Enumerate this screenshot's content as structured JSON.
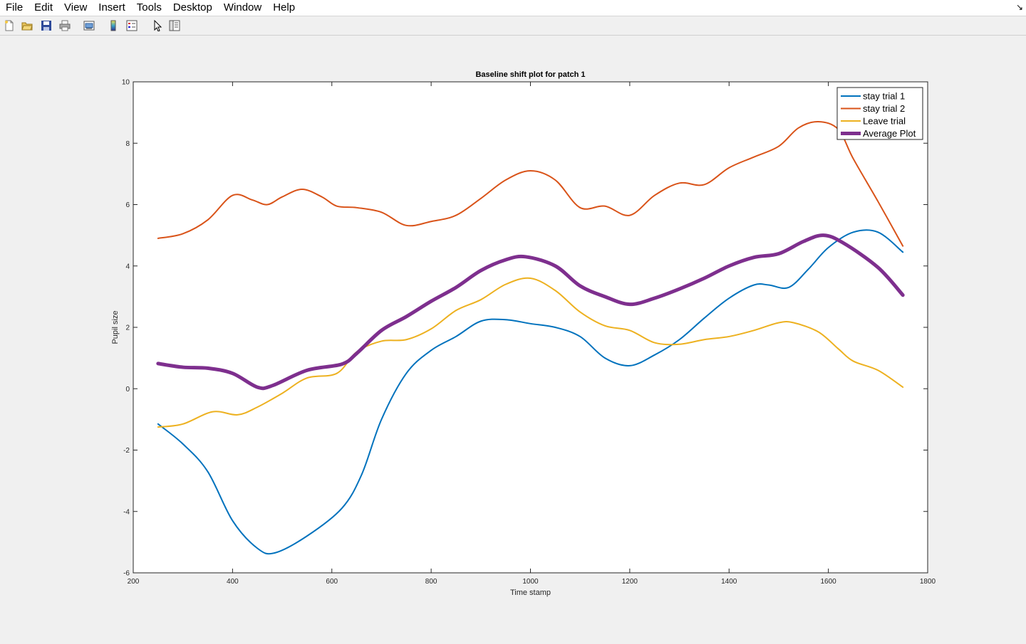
{
  "menu": {
    "items": [
      "File",
      "Edit",
      "View",
      "Insert",
      "Tools",
      "Desktop",
      "Window",
      "Help"
    ]
  },
  "toolbar": {
    "icons": [
      "new-figure-icon",
      "open-file-icon",
      "save-icon",
      "print-icon",
      "link-plot-icon",
      "insert-colorbar-icon",
      "insert-legend-icon",
      "edit-plot-icon",
      "property-inspector-icon"
    ]
  },
  "chart_data": {
    "type": "line",
    "title": "Baseline shift plot for patch 1",
    "xlabel": "Time stamp",
    "ylabel": "Pupil size",
    "xlim": [
      200,
      1800
    ],
    "ylim": [
      -6,
      10
    ],
    "xticks": [
      200,
      400,
      600,
      800,
      1000,
      1200,
      1400,
      1600,
      1800
    ],
    "yticks": [
      -6,
      -4,
      -2,
      0,
      2,
      4,
      6,
      8,
      10
    ],
    "grid": false,
    "legend_position": "top-right",
    "series": [
      {
        "name": "stay trial 1",
        "color": "#0072bd",
        "width": 2,
        "points": [
          [
            250,
            -1.15
          ],
          [
            300,
            -1.8
          ],
          [
            350,
            -2.7
          ],
          [
            400,
            -4.3
          ],
          [
            450,
            -5.2
          ],
          [
            485,
            -5.35
          ],
          [
            550,
            -4.8
          ],
          [
            620,
            -3.9
          ],
          [
            660,
            -2.8
          ],
          [
            700,
            -1.0
          ],
          [
            750,
            0.5
          ],
          [
            800,
            1.25
          ],
          [
            850,
            1.7
          ],
          [
            900,
            2.2
          ],
          [
            950,
            2.25
          ],
          [
            1000,
            2.12
          ],
          [
            1050,
            2.0
          ],
          [
            1100,
            1.7
          ],
          [
            1150,
            1.0
          ],
          [
            1200,
            0.75
          ],
          [
            1250,
            1.1
          ],
          [
            1300,
            1.6
          ],
          [
            1350,
            2.3
          ],
          [
            1400,
            2.95
          ],
          [
            1450,
            3.38
          ],
          [
            1480,
            3.38
          ],
          [
            1520,
            3.3
          ],
          [
            1560,
            3.9
          ],
          [
            1600,
            4.6
          ],
          [
            1650,
            5.1
          ],
          [
            1700,
            5.1
          ],
          [
            1750,
            4.45
          ]
        ]
      },
      {
        "name": "stay trial 2",
        "color": "#d95319",
        "width": 2,
        "points": [
          [
            250,
            4.9
          ],
          [
            300,
            5.05
          ],
          [
            350,
            5.5
          ],
          [
            400,
            6.3
          ],
          [
            440,
            6.15
          ],
          [
            470,
            6.0
          ],
          [
            500,
            6.25
          ],
          [
            540,
            6.5
          ],
          [
            580,
            6.25
          ],
          [
            610,
            5.95
          ],
          [
            650,
            5.9
          ],
          [
            700,
            5.75
          ],
          [
            750,
            5.32
          ],
          [
            800,
            5.45
          ],
          [
            850,
            5.65
          ],
          [
            900,
            6.2
          ],
          [
            950,
            6.8
          ],
          [
            1000,
            7.1
          ],
          [
            1050,
            6.8
          ],
          [
            1100,
            5.9
          ],
          [
            1150,
            5.95
          ],
          [
            1200,
            5.65
          ],
          [
            1250,
            6.3
          ],
          [
            1300,
            6.7
          ],
          [
            1350,
            6.65
          ],
          [
            1400,
            7.2
          ],
          [
            1450,
            7.55
          ],
          [
            1500,
            7.9
          ],
          [
            1540,
            8.5
          ],
          [
            1580,
            8.7
          ],
          [
            1620,
            8.45
          ],
          [
            1650,
            7.5
          ],
          [
            1700,
            6.1
          ],
          [
            1750,
            4.65
          ]
        ]
      },
      {
        "name": "Leave trial",
        "color": "#edb120",
        "width": 2,
        "points": [
          [
            250,
            -1.25
          ],
          [
            300,
            -1.15
          ],
          [
            360,
            -0.75
          ],
          [
            410,
            -0.85
          ],
          [
            450,
            -0.6
          ],
          [
            500,
            -0.15
          ],
          [
            550,
            0.35
          ],
          [
            610,
            0.5
          ],
          [
            650,
            1.2
          ],
          [
            700,
            1.55
          ],
          [
            750,
            1.6
          ],
          [
            800,
            1.95
          ],
          [
            850,
            2.55
          ],
          [
            900,
            2.9
          ],
          [
            950,
            3.4
          ],
          [
            1000,
            3.6
          ],
          [
            1050,
            3.2
          ],
          [
            1100,
            2.5
          ],
          [
            1150,
            2.05
          ],
          [
            1200,
            1.9
          ],
          [
            1250,
            1.5
          ],
          [
            1300,
            1.45
          ],
          [
            1350,
            1.6
          ],
          [
            1400,
            1.7
          ],
          [
            1450,
            1.9
          ],
          [
            1500,
            2.15
          ],
          [
            1530,
            2.15
          ],
          [
            1580,
            1.85
          ],
          [
            1620,
            1.3
          ],
          [
            1650,
            0.9
          ],
          [
            1700,
            0.6
          ],
          [
            1750,
            0.05
          ]
        ]
      },
      {
        "name": "Average Plot",
        "color": "#7e2f8e",
        "width": 5,
        "points": [
          [
            250,
            0.82
          ],
          [
            300,
            0.7
          ],
          [
            350,
            0.67
          ],
          [
            400,
            0.5
          ],
          [
            450,
            0.05
          ],
          [
            480,
            0.1
          ],
          [
            550,
            0.6
          ],
          [
            620,
            0.8
          ],
          [
            650,
            1.15
          ],
          [
            700,
            1.9
          ],
          [
            750,
            2.35
          ],
          [
            800,
            2.85
          ],
          [
            850,
            3.3
          ],
          [
            900,
            3.85
          ],
          [
            950,
            4.2
          ],
          [
            990,
            4.3
          ],
          [
            1050,
            4.0
          ],
          [
            1100,
            3.35
          ],
          [
            1150,
            3.0
          ],
          [
            1200,
            2.75
          ],
          [
            1250,
            2.95
          ],
          [
            1300,
            3.25
          ],
          [
            1350,
            3.6
          ],
          [
            1400,
            4.0
          ],
          [
            1450,
            4.28
          ],
          [
            1500,
            4.4
          ],
          [
            1550,
            4.8
          ],
          [
            1590,
            5.0
          ],
          [
            1630,
            4.75
          ],
          [
            1700,
            3.95
          ],
          [
            1750,
            3.05
          ]
        ]
      }
    ]
  }
}
